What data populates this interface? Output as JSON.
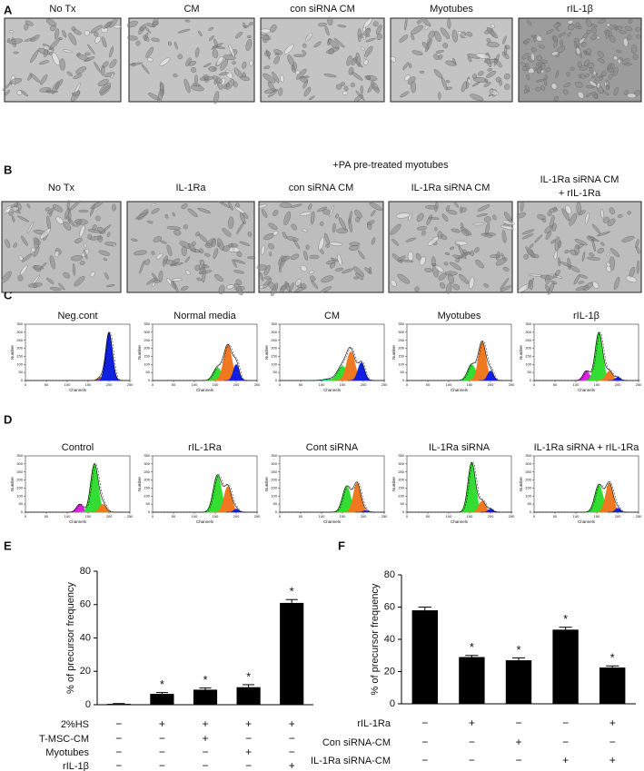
{
  "panels": {
    "A": {
      "label": "A",
      "captions": [
        "No Tx",
        "CM",
        "con siRNA CM",
        "Myotubes",
        "rIL-1β"
      ]
    },
    "B": {
      "label": "B",
      "heading": "+PA pre-treated myotubes",
      "captions": [
        "No Tx",
        "IL-1Ra",
        "con siRNA CM",
        "IL-1Ra siRNA CM",
        [
          "IL-1Ra siRNA CM",
          "+ rIL-1Ra"
        ]
      ]
    },
    "C": {
      "label": "C"
    },
    "D": {
      "label": "D"
    },
    "E": {
      "label": "E"
    },
    "F": {
      "label": "F"
    }
  },
  "chart_data": [
    {
      "type": "flow",
      "title": "Neg.cont",
      "xlabel": "Channels",
      "ylabel": "Number",
      "xlim": [
        0,
        250
      ],
      "ylim": [
        0,
        350
      ],
      "xticks": [
        0,
        50,
        100,
        150,
        200,
        250
      ],
      "yticks": [
        0,
        50,
        100,
        150,
        200,
        250,
        300,
        350
      ],
      "peaks": [
        {
          "center": 180,
          "height": 20,
          "width": 7,
          "color": "#f07820"
        },
        {
          "center": 200,
          "height": 300,
          "width": 8,
          "color": "#1020e0"
        }
      ]
    },
    {
      "type": "flow",
      "title": "Normal media",
      "xlabel": "Channels",
      "ylabel": "Number",
      "xlim": [
        0,
        250
      ],
      "ylim": [
        0,
        350
      ],
      "xticks": [
        0,
        50,
        100,
        150,
        200,
        250
      ],
      "yticks": [
        0,
        50,
        100,
        150,
        200,
        250,
        300,
        350
      ],
      "peaks": [
        {
          "center": 155,
          "height": 80,
          "width": 10,
          "color": "#33dd33"
        },
        {
          "center": 180,
          "height": 220,
          "width": 10,
          "color": "#f07820"
        },
        {
          "center": 200,
          "height": 100,
          "width": 7,
          "color": "#1020e0"
        }
      ]
    },
    {
      "type": "flow",
      "title": "CM",
      "xlabel": "Channels",
      "ylabel": "Number",
      "xlim": [
        0,
        250
      ],
      "ylim": [
        0,
        350
      ],
      "xticks": [
        0,
        50,
        100,
        150,
        200,
        250
      ],
      "yticks": [
        0,
        50,
        100,
        150,
        200,
        250,
        300,
        350
      ],
      "peaks": [
        {
          "center": 120,
          "height": 10,
          "width": 15,
          "color": "#20d0e0"
        },
        {
          "center": 150,
          "height": 90,
          "width": 12,
          "color": "#33dd33"
        },
        {
          "center": 170,
          "height": 180,
          "width": 10,
          "color": "#f07820"
        },
        {
          "center": 195,
          "height": 110,
          "width": 8,
          "color": "#1020e0"
        }
      ]
    },
    {
      "type": "flow",
      "title": "Myotubes",
      "xlabel": "Channels",
      "ylabel": "Number",
      "xlim": [
        0,
        250
      ],
      "ylim": [
        0,
        350
      ],
      "xticks": [
        0,
        50,
        100,
        150,
        200,
        250
      ],
      "yticks": [
        0,
        50,
        100,
        150,
        200,
        250,
        300,
        350
      ],
      "peaks": [
        {
          "center": 155,
          "height": 100,
          "width": 10,
          "color": "#33dd33"
        },
        {
          "center": 180,
          "height": 240,
          "width": 9,
          "color": "#f07820"
        },
        {
          "center": 200,
          "height": 60,
          "width": 7,
          "color": "#1020e0"
        }
      ]
    },
    {
      "type": "flow",
      "title": "rIL-1β",
      "xlabel": "Channels",
      "ylabel": "Number",
      "xlim": [
        0,
        250
      ],
      "ylim": [
        0,
        350
      ],
      "xticks": [
        0,
        50,
        100,
        150,
        200,
        250
      ],
      "yticks": [
        0,
        50,
        100,
        150,
        200,
        250,
        300,
        350
      ],
      "peaks": [
        {
          "center": 125,
          "height": 60,
          "width": 8,
          "color": "#e020e0"
        },
        {
          "center": 155,
          "height": 300,
          "width": 9,
          "color": "#33dd33"
        },
        {
          "center": 180,
          "height": 60,
          "width": 8,
          "color": "#f07820"
        },
        {
          "center": 200,
          "height": 20,
          "width": 6,
          "color": "#1020e0"
        }
      ]
    },
    {
      "type": "flow",
      "title": "Control",
      "xlabel": "Channels",
      "ylabel": "Number",
      "xlim": [
        0,
        250
      ],
      "ylim": [
        0,
        350
      ],
      "xticks": [
        0,
        50,
        100,
        150,
        200,
        250
      ],
      "yticks": [
        0,
        50,
        100,
        150,
        200,
        250,
        300,
        350
      ],
      "peaks": [
        {
          "center": 130,
          "height": 50,
          "width": 8,
          "color": "#e020e0"
        },
        {
          "center": 165,
          "height": 300,
          "width": 9,
          "color": "#33dd33"
        },
        {
          "center": 185,
          "height": 50,
          "width": 8,
          "color": "#f07820"
        }
      ]
    },
    {
      "type": "flow",
      "title": "rIL-1Ra",
      "xlabel": "Channels",
      "ylabel": "Number",
      "xlim": [
        0,
        250
      ],
      "ylim": [
        0,
        350
      ],
      "xticks": [
        0,
        50,
        100,
        150,
        200,
        250
      ],
      "yticks": [
        0,
        50,
        100,
        150,
        200,
        250,
        300,
        350
      ],
      "peaks": [
        {
          "center": 155,
          "height": 230,
          "width": 10,
          "color": "#33dd33"
        },
        {
          "center": 180,
          "height": 160,
          "width": 9,
          "color": "#f07820"
        },
        {
          "center": 200,
          "height": 20,
          "width": 6,
          "color": "#1020e0"
        }
      ]
    },
    {
      "type": "flow",
      "title": "Cont siRNA",
      "xlabel": "Channels",
      "ylabel": "Number",
      "xlim": [
        0,
        250
      ],
      "ylim": [
        0,
        350
      ],
      "xticks": [
        0,
        50,
        100,
        150,
        200,
        250
      ],
      "yticks": [
        0,
        50,
        100,
        150,
        200,
        250,
        300,
        350
      ],
      "peaks": [
        {
          "center": 160,
          "height": 160,
          "width": 10,
          "color": "#33dd33"
        },
        {
          "center": 185,
          "height": 180,
          "width": 9,
          "color": "#f07820"
        },
        {
          "center": 205,
          "height": 10,
          "width": 6,
          "color": "#1020e0"
        }
      ]
    },
    {
      "type": "flow",
      "title": "IL-1Ra siRNA",
      "xlabel": "Channels",
      "ylabel": "Number",
      "xlim": [
        0,
        250
      ],
      "ylim": [
        0,
        350
      ],
      "xticks": [
        0,
        50,
        100,
        150,
        200,
        250
      ],
      "yticks": [
        0,
        50,
        100,
        150,
        200,
        250,
        300,
        350
      ],
      "peaks": [
        {
          "center": 155,
          "height": 310,
          "width": 9,
          "color": "#33dd33"
        },
        {
          "center": 180,
          "height": 70,
          "width": 8,
          "color": "#f07820"
        },
        {
          "center": 200,
          "height": 20,
          "width": 6,
          "color": "#1020e0"
        }
      ]
    },
    {
      "type": "flow",
      "title": "IL-1Ra siRNA + rIL-1Ra",
      "xlabel": "Channels",
      "ylabel": "Number",
      "xlim": [
        0,
        250
      ],
      "ylim": [
        0,
        350
      ],
      "xticks": [
        0,
        50,
        100,
        150,
        200,
        250
      ],
      "yticks": [
        0,
        50,
        100,
        150,
        200,
        250,
        300,
        350
      ],
      "peaks": [
        {
          "center": 155,
          "height": 170,
          "width": 10,
          "color": "#33dd33"
        },
        {
          "center": 180,
          "height": 180,
          "width": 9,
          "color": "#f07820"
        },
        {
          "center": 200,
          "height": 25,
          "width": 6,
          "color": "#1020e0"
        }
      ]
    },
    {
      "type": "bar",
      "ylabel": "% of precursor frequency",
      "values": [
        0.5,
        6.5,
        9,
        10.5,
        61
      ],
      "errors": [
        0.2,
        0.8,
        1,
        1.5,
        2
      ],
      "color": "#000000",
      "ylim": [
        0,
        80
      ],
      "yticks": [
        0,
        20,
        40,
        60,
        80
      ],
      "significance": [
        null,
        "*",
        "*",
        "*",
        "*"
      ],
      "conditions": [
        {
          "name": "2%HS",
          "marks": [
            "−",
            "+",
            "+",
            "+",
            "+"
          ]
        },
        {
          "name": "T-MSC-CM",
          "marks": [
            "−",
            "−",
            "+",
            "−",
            "−"
          ]
        },
        {
          "name": "Myotubes",
          "marks": [
            "−",
            "−",
            "−",
            "+",
            "−"
          ]
        },
        {
          "name": "rIL-1β",
          "marks": [
            "−",
            "−",
            "−",
            "−",
            "+"
          ]
        }
      ]
    },
    {
      "type": "bar",
      "ylabel": "% of precursor frequency",
      "values": [
        58,
        29,
        27,
        46,
        22.5
      ],
      "errors": [
        2,
        1,
        1.5,
        1.5,
        1
      ],
      "color": "#000000",
      "ylim": [
        0,
        80
      ],
      "yticks": [
        0,
        20,
        40,
        60,
        80
      ],
      "significance": [
        null,
        "*",
        "*",
        "*",
        "*"
      ],
      "conditions": [
        {
          "name": "rIL-1Ra",
          "marks": [
            "−",
            "+",
            "−",
            "−",
            "+"
          ]
        },
        {
          "name": "Con siRNA-CM",
          "marks": [
            "−",
            "−",
            "+",
            "−",
            "−"
          ]
        },
        {
          "name": "IL-1Ra siRNA-CM",
          "marks": [
            "−",
            "−",
            "−",
            "+",
            "+"
          ]
        }
      ]
    }
  ]
}
